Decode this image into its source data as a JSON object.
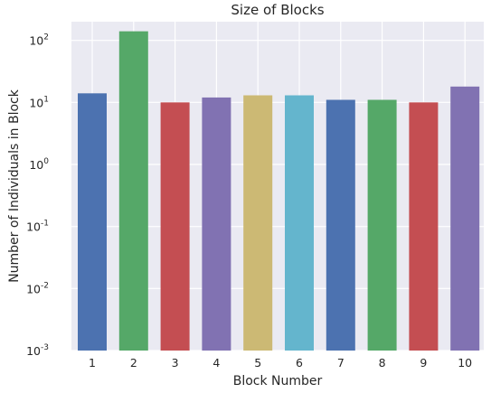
{
  "chart_data": {
    "type": "bar",
    "title": "Size of Blocks",
    "xlabel": "Block Number",
    "ylabel": "Number of Individuals in Block",
    "yscale": "log",
    "ylim": [
      0.001,
      200
    ],
    "yticks": [
      {
        "base": "10",
        "exp": "-3"
      },
      {
        "base": "10",
        "exp": "-2"
      },
      {
        "base": "10",
        "exp": "-1"
      },
      {
        "base": "10",
        "exp": "0"
      },
      {
        "base": "10",
        "exp": "1"
      },
      {
        "base": "10",
        "exp": "2"
      }
    ],
    "categories": [
      "1",
      "2",
      "3",
      "4",
      "5",
      "6",
      "7",
      "8",
      "9",
      "10"
    ],
    "values": [
      14,
      140,
      10,
      12,
      13,
      13,
      11,
      11,
      10,
      18
    ],
    "colors": [
      "#4c72b0",
      "#55a868",
      "#c44e52",
      "#8172b2",
      "#ccb974",
      "#64b5cd",
      "#4c72b0",
      "#55a868",
      "#c44e52",
      "#8172b2"
    ],
    "grid": true,
    "background": "#eaeaf2"
  }
}
